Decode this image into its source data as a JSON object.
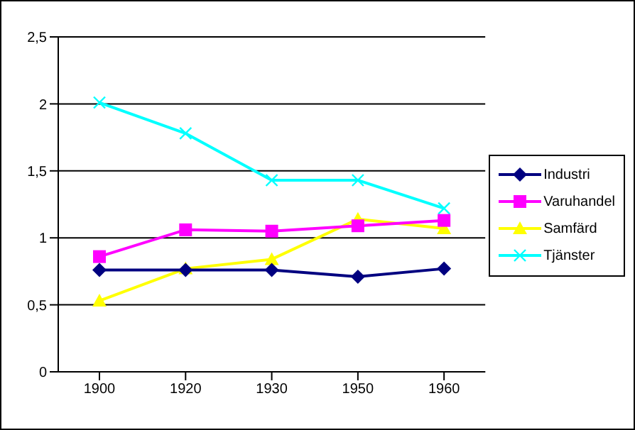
{
  "chart_data": {
    "type": "line",
    "categories": [
      "1900",
      "1920",
      "1930",
      "1950",
      "1960"
    ],
    "series": [
      {
        "name": "Industri",
        "color": "#000080",
        "marker": "diamond",
        "values": [
          0.76,
          0.76,
          0.76,
          0.71,
          0.77
        ]
      },
      {
        "name": "Varuhandel",
        "color": "#ff00ff",
        "marker": "square",
        "values": [
          0.86,
          1.06,
          1.05,
          1.09,
          1.13
        ]
      },
      {
        "name": "Samfärd",
        "color": "#ffff00",
        "marker": "triangle",
        "values": [
          0.53,
          0.77,
          0.84,
          1.14,
          1.07
        ]
      },
      {
        "name": "Tjänster",
        "color": "#00ffff",
        "marker": "cross",
        "values": [
          2.01,
          1.78,
          1.43,
          1.43,
          1.22
        ]
      }
    ],
    "ylim": [
      0,
      2.5
    ],
    "yticks": [
      {
        "value": 0,
        "label": "0"
      },
      {
        "value": 0.5,
        "label": "0,5"
      },
      {
        "value": 1,
        "label": "1"
      },
      {
        "value": 1.5,
        "label": "1,5"
      },
      {
        "value": 2,
        "label": "2"
      },
      {
        "value": 2.5,
        "label": "2,5"
      }
    ],
    "grid": "y",
    "legend": "right"
  }
}
